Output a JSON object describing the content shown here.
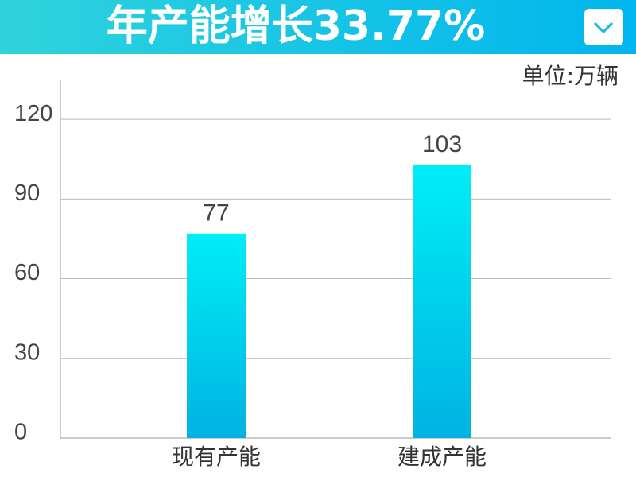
{
  "chart_data": {
    "type": "bar",
    "title": "年产能增长33.77%",
    "unit": "单位:万辆",
    "categories": [
      "现有产能",
      "建成产能"
    ],
    "values": [
      77,
      103
    ],
    "gradient": [
      "#00eef6",
      "#00b2e2"
    ],
    "ylim": [
      0,
      135
    ],
    "yticks": [
      0,
      30,
      60,
      90,
      120
    ],
    "grid": true
  }
}
